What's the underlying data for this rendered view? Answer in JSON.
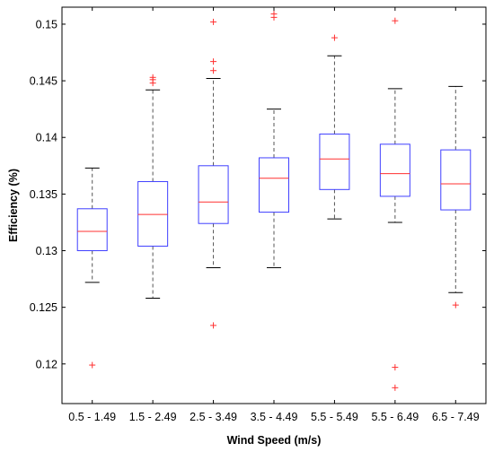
{
  "chart_data": {
    "type": "boxplot",
    "xlabel": "Wind Speed (m/s)",
    "ylabel": "Efficiency (%)",
    "ylim": [
      0.1165,
      0.1515
    ],
    "yticks": [
      0.12,
      0.125,
      0.13,
      0.135,
      0.14,
      0.145,
      0.15
    ],
    "ytick_labels": [
      "0.12",
      "0.125",
      "0.13",
      "0.135",
      "0.14",
      "0.145",
      "0.15"
    ],
    "grid": false,
    "colors": {
      "box": "#4040ff",
      "median": "#ff3030",
      "outlier": "#ff3030",
      "whisker": "#555555"
    },
    "categories": [
      "0.5 - 1.49",
      "1.5 - 2.49",
      "2.5 - 3.49",
      "3.5 - 4.49",
      "5.5 - 5.49",
      "5.5 - 6.49",
      "6.5 - 7.49"
    ],
    "boxes": [
      {
        "whislo": 0.1272,
        "q1": 0.13,
        "med": 0.1317,
        "q3": 0.1337,
        "whishi": 0.1373,
        "fliers": [
          0.1199
        ]
      },
      {
        "whislo": 0.1258,
        "q1": 0.1304,
        "med": 0.1332,
        "q3": 0.1361,
        "whishi": 0.1442,
        "fliers": [
          0.1448,
          0.1451,
          0.1453
        ]
      },
      {
        "whislo": 0.1285,
        "q1": 0.1324,
        "med": 0.1343,
        "q3": 0.1375,
        "whishi": 0.1452,
        "fliers": [
          0.1234,
          0.1459,
          0.1467,
          0.1502
        ]
      },
      {
        "whislo": 0.1285,
        "q1": 0.1334,
        "med": 0.1364,
        "q3": 0.1382,
        "whishi": 0.1425,
        "fliers": [
          0.1506,
          0.1509
        ]
      },
      {
        "whislo": 0.1328,
        "q1": 0.1354,
        "med": 0.1381,
        "q3": 0.1403,
        "whishi": 0.1472,
        "fliers": [
          0.1488
        ]
      },
      {
        "whislo": 0.1325,
        "q1": 0.1348,
        "med": 0.1368,
        "q3": 0.1394,
        "whishi": 0.1443,
        "fliers": [
          0.1179,
          0.1197,
          0.1503
        ]
      },
      {
        "whislo": 0.1263,
        "q1": 0.1336,
        "med": 0.1359,
        "q3": 0.1389,
        "whishi": 0.1445,
        "fliers": [
          0.1252
        ]
      }
    ]
  }
}
